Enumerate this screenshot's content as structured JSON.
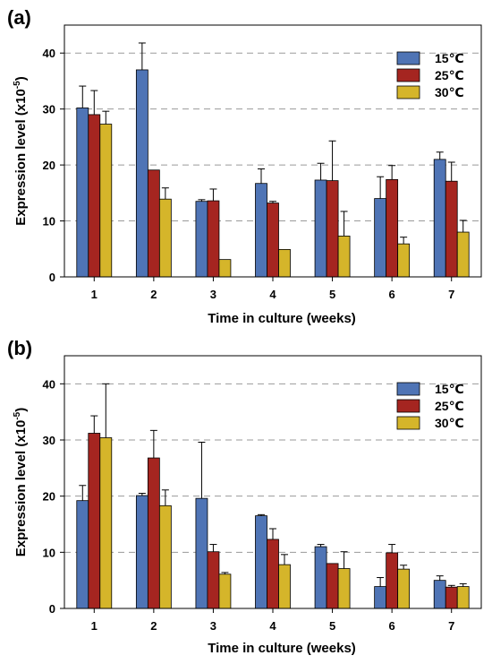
{
  "colors": {
    "s15": "#4F74B5",
    "s25": "#A52520",
    "s30": "#D5B52A",
    "grid": "#9a9a9a"
  },
  "chart_data": [
    {
      "type": "bar",
      "panel_label": "(a)",
      "xlabel": "Time in culture (weeks)",
      "ylabel": "Expression level (x10",
      "ylabel_exp": "-5",
      "ylabel_close": ")",
      "categories": [
        "1",
        "2",
        "3",
        "4",
        "5",
        "6",
        "7"
      ],
      "ylim": [
        0,
        45
      ],
      "yticks": [
        0,
        10,
        20,
        30,
        40
      ],
      "grid": "horizontal dashed",
      "legend_position": "top-right",
      "series": [
        {
          "name": "15℃",
          "color": "#4F74B5",
          "values": [
            30.2,
            37.0,
            13.5,
            16.7,
            17.3,
            14.0,
            21.0
          ],
          "errors": [
            3.9,
            4.8,
            0.3,
            2.6,
            3.0,
            3.9,
            1.3
          ]
        },
        {
          "name": "25℃",
          "color": "#A52520",
          "values": [
            29.0,
            19.1,
            13.6,
            13.2,
            17.2,
            17.4,
            17.1
          ],
          "errors": [
            4.3,
            0.0,
            2.1,
            0.3,
            7.1,
            2.5,
            3.4
          ]
        },
        {
          "name": "30℃",
          "color": "#D5B52A",
          "values": [
            27.3,
            13.9,
            3.1,
            4.9,
            7.3,
            5.9,
            8.0
          ],
          "errors": [
            2.3,
            2.0,
            0.0,
            0.0,
            4.4,
            1.2,
            2.1
          ]
        }
      ]
    },
    {
      "type": "bar",
      "panel_label": "(b)",
      "xlabel": "Time in culture (weeks)",
      "ylabel": "Expression level (x10",
      "ylabel_exp": "-5",
      "ylabel_close": ")",
      "categories": [
        "1",
        "2",
        "3",
        "4",
        "5",
        "6",
        "7"
      ],
      "ylim": [
        0,
        45
      ],
      "yticks": [
        0,
        10,
        20,
        30,
        40
      ],
      "grid": "horizontal dashed",
      "legend_position": "top-right",
      "series": [
        {
          "name": "15℃",
          "color": "#4F74B5",
          "values": [
            19.2,
            20.1,
            19.6,
            16.5,
            11.0,
            3.9,
            5.0
          ],
          "errors": [
            2.7,
            0.4,
            10.0,
            0.2,
            0.4,
            1.6,
            0.8
          ]
        },
        {
          "name": "25℃",
          "color": "#A52520",
          "values": [
            31.2,
            26.8,
            10.1,
            12.3,
            8.0,
            9.9,
            3.8
          ],
          "errors": [
            3.1,
            4.9,
            1.3,
            1.9,
            0.0,
            1.5,
            0.3
          ]
        },
        {
          "name": "30℃",
          "color": "#D5B52A",
          "values": [
            30.4,
            18.3,
            6.1,
            7.8,
            7.1,
            7.0,
            3.9
          ],
          "errors": [
            9.6,
            2.8,
            0.3,
            1.8,
            3.0,
            0.7,
            0.5
          ]
        }
      ]
    }
  ]
}
